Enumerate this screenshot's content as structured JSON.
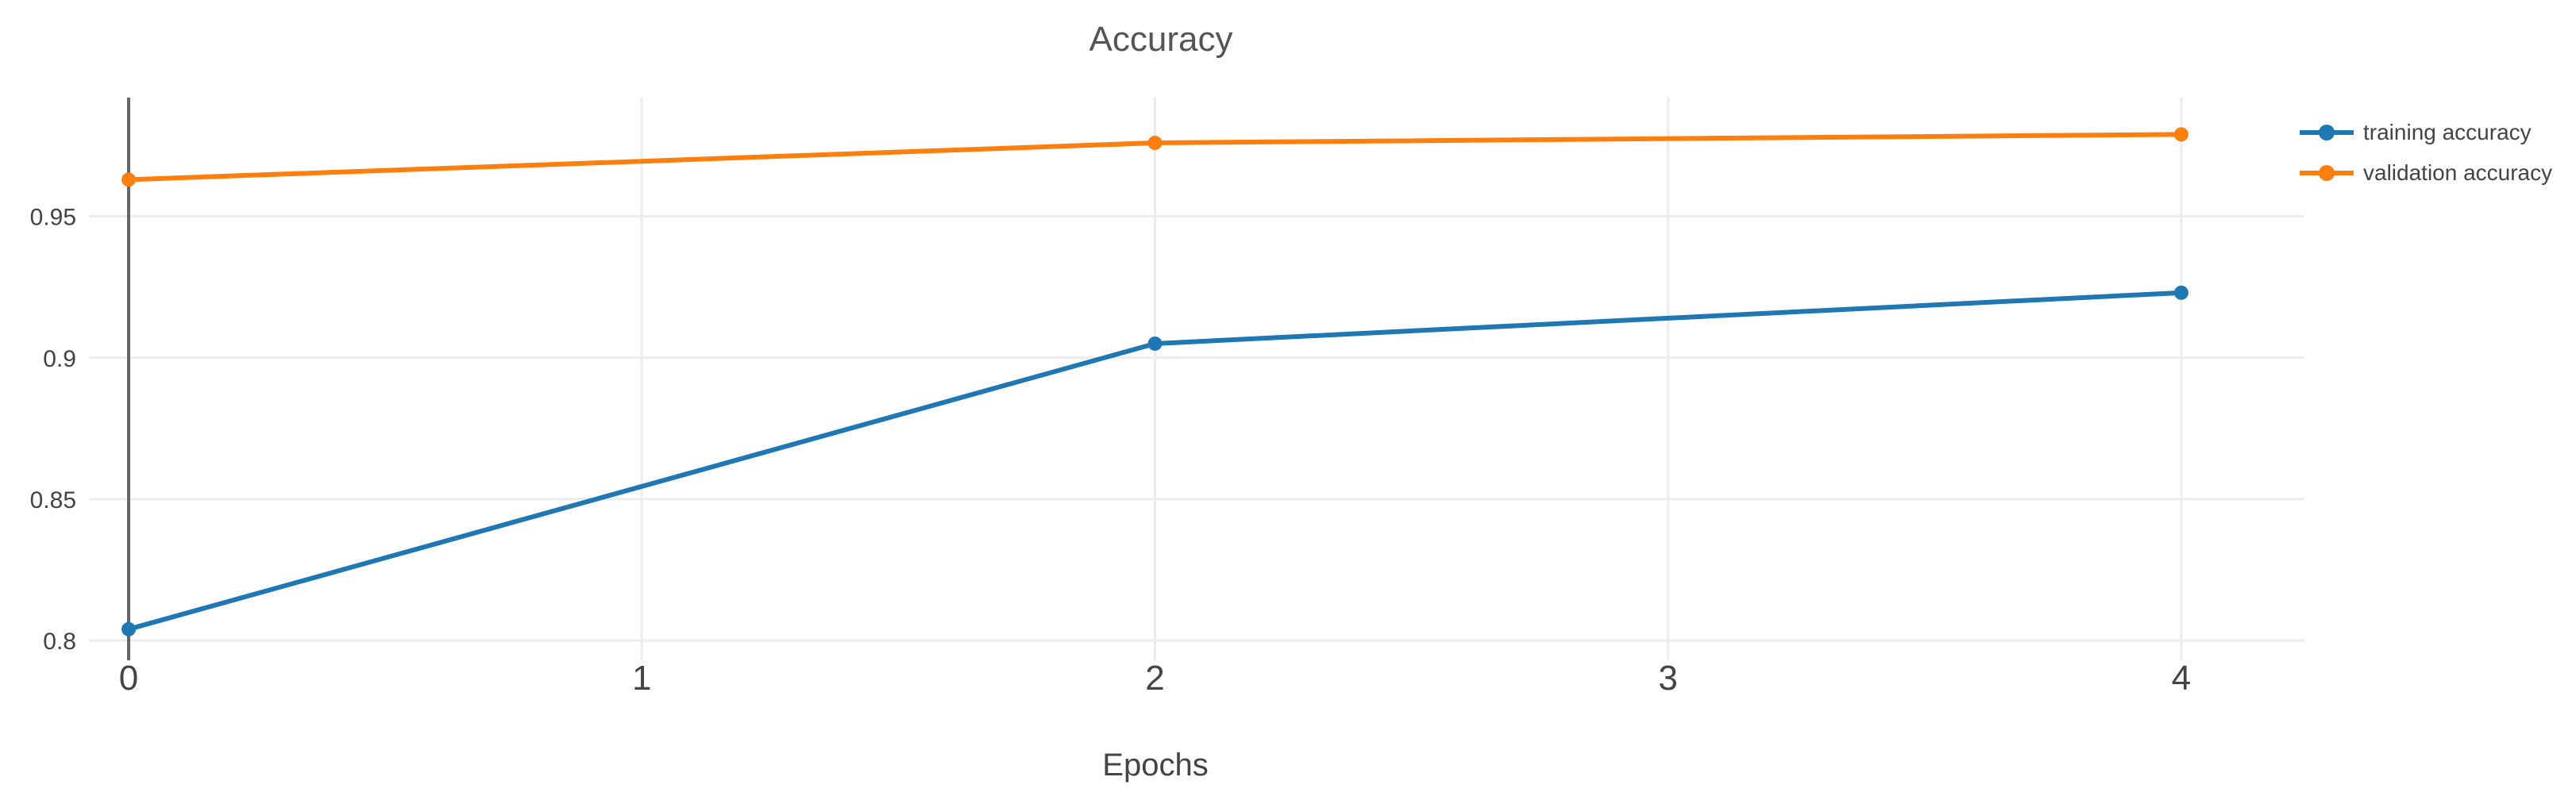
{
  "chart_data": {
    "type": "line",
    "title": "Accuracy",
    "xlabel": "Epochs",
    "ylabel": "",
    "x": [
      0,
      2,
      4
    ],
    "series": [
      {
        "name": "training accuracy",
        "color": "#1f77b4",
        "values": [
          0.804,
          0.905,
          0.923
        ]
      },
      {
        "name": "validation accuracy",
        "color": "#ff7f0e",
        "values": [
          0.963,
          0.976,
          0.979
        ]
      }
    ],
    "xticks": [
      0,
      1,
      2,
      3,
      4
    ],
    "yticks": [
      0.8,
      0.85,
      0.9,
      0.95
    ],
    "xlim": [
      0,
      4.24
    ],
    "ylim": [
      0.793,
      0.992
    ],
    "grid": true,
    "marker": "circle",
    "legend": {
      "position": "right",
      "entries": [
        "training accuracy",
        "validation accuracy"
      ]
    },
    "colors": {
      "grid": "#ececec",
      "zeroline": "#666666",
      "tick_text": "#444444",
      "title_text": "#555555",
      "background": "#ffffff"
    }
  }
}
